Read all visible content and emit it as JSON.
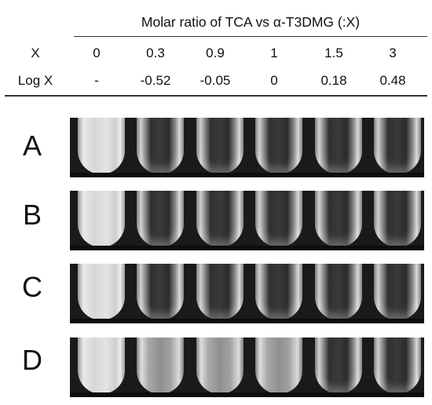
{
  "table": {
    "title": "Molar ratio of TCA vs α-T3DMG (:X)",
    "row_x_label": "X",
    "row_log_label": "Log X",
    "x_values": [
      "0",
      "0.3",
      "0.9",
      "1",
      "1.5",
      "3"
    ],
    "log_values": [
      "-",
      "-0.52",
      "-0.05",
      "0",
      "0.18",
      "0.48"
    ]
  },
  "rows": [
    {
      "label": "A",
      "tubes": [
        "cloudy",
        "clear",
        "clear",
        "clear",
        "clear",
        "clear"
      ]
    },
    {
      "label": "B",
      "tubes": [
        "cloudy",
        "clear",
        "clear",
        "clear",
        "clear",
        "clear"
      ]
    },
    {
      "label": "C",
      "tubes": [
        "cloudy",
        "clear",
        "clear",
        "clear",
        "clear",
        "clear"
      ]
    },
    {
      "label": "D",
      "tubes": [
        "cloudy",
        "hazy",
        "hazy",
        "hazy",
        "clear",
        "clear"
      ]
    }
  ]
}
